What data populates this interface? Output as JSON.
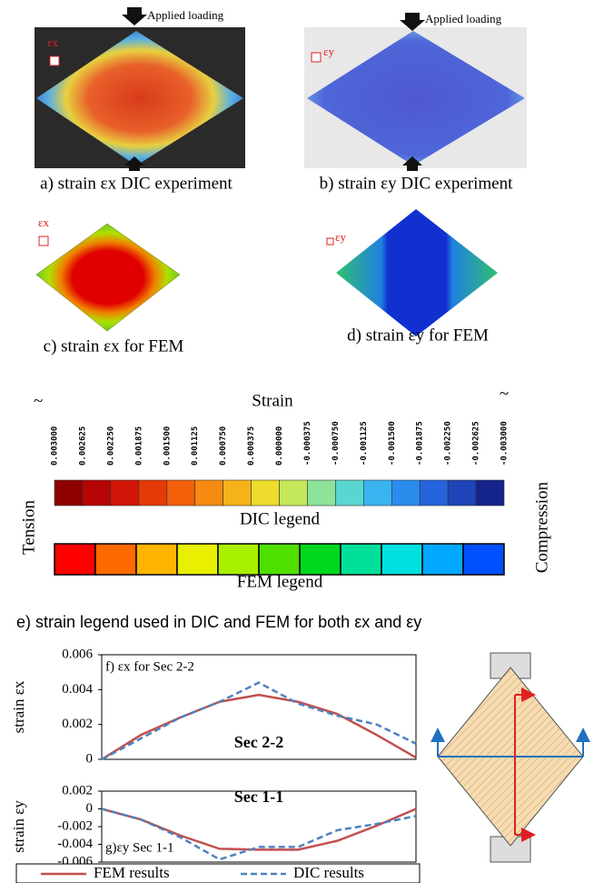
{
  "panels": {
    "a": {
      "loading": "Applied loading",
      "symbol": "εx",
      "caption": "a) strain εx DIC experiment"
    },
    "b": {
      "loading": "Applied loading",
      "symbol": "εy",
      "caption": "b) strain εy DIC experiment"
    },
    "c": {
      "symbol": "εx",
      "caption": "c) strain εx for FEM"
    },
    "d": {
      "symbol": "εy",
      "caption": "d) strain εy for FEM"
    }
  },
  "strain_legend": {
    "title": "Strain",
    "ticks": [
      "0.003000",
      "0.002625",
      "0.002250",
      "0.001875",
      "0.001500",
      "0.001125",
      "0.000750",
      "0.000375",
      "0.000000",
      "-0.000375",
      "-0.000750",
      "-0.001125",
      "-0.001500",
      "-0.001875",
      "-0.002250",
      "-0.002625",
      "-0.003000"
    ],
    "ends": [
      "~",
      "~"
    ],
    "dic_colors": [
      "#8e0000",
      "#b50505",
      "#d21608",
      "#e63a06",
      "#f2600a",
      "#f78a10",
      "#f6b21a",
      "#eedc2c",
      "#c4e85a",
      "#8ee39a",
      "#5ad6d0",
      "#3ab4f0",
      "#2b8cee",
      "#2464dc",
      "#1e44b8",
      "#14248a"
    ],
    "fem_colors": [
      "#ff0000",
      "#ff6a00",
      "#ffb400",
      "#e8f000",
      "#a8f000",
      "#50e000",
      "#00d820",
      "#00e09a",
      "#00e0e0",
      "#00a8ff",
      "#0050ff"
    ],
    "dic_label": "DIC legend",
    "fem_label": "FEM legend",
    "left": "Tension",
    "right": "Compression"
  },
  "caption_e": "e) strain legend used in DIC and FEM for both εx and εy",
  "chart_data": [
    {
      "type": "line",
      "ylabel": "strain εx",
      "annotations": [
        "f) εx for Sec 2-2",
        "Sec 2-2"
      ],
      "categories": [
        null,
        null,
        null,
        null,
        null,
        null,
        null,
        null,
        null
      ],
      "series": [
        {
          "name": "FEM results",
          "color": "#c0504d",
          "values": [
            0,
            0.0014,
            0.0024,
            0.0033,
            0.0037,
            0.0033,
            0.0026,
            0.0014,
            0.0001
          ]
        },
        {
          "name": "DIC results",
          "color": "#4f81bd",
          "values": [
            0,
            0.0012,
            0.0024,
            0.0033,
            0.0044,
            0.0032,
            0.0025,
            0.002,
            0.0009
          ]
        }
      ],
      "ylim": [
        0,
        0.006
      ],
      "yticks": [
        0,
        0.002,
        0.004,
        0.006
      ]
    },
    {
      "type": "line",
      "ylabel": "strain εy",
      "annotations": [
        "Sec 1-1",
        "g)εy Sec 1-1"
      ],
      "categories": [
        null,
        null,
        null,
        null,
        null,
        null,
        null,
        null,
        null
      ],
      "series": [
        {
          "color": "#c0504d",
          "values": [
            0,
            -0.0012,
            -0.003,
            -0.0045,
            -0.0046,
            -0.0046,
            -0.0036,
            -0.0019,
            0
          ]
        },
        {
          "color": "#4f81bd",
          "values": [
            0,
            -0.0012,
            -0.0032,
            -0.0057,
            -0.0043,
            -0.0043,
            -0.0024,
            -0.0017,
            -0.0008
          ]
        }
      ],
      "ylim": [
        -0.006,
        0.002
      ],
      "yticks": [
        -0.006,
        -0.004,
        -0.002,
        0,
        0.002
      ]
    }
  ]
}
